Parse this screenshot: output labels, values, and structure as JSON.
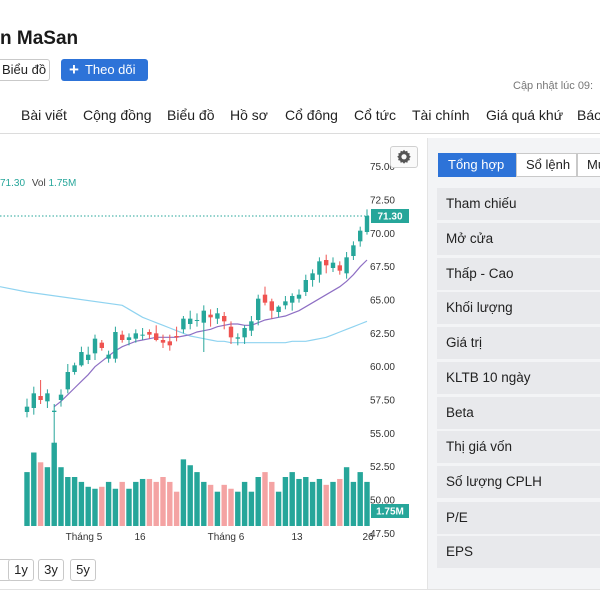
{
  "header": {
    "title": "n MaSan",
    "chart_button": "Biểu đồ",
    "follow_button": "Theo dõi",
    "updated_label": "Cập nhật lúc  09:"
  },
  "nav": {
    "items": [
      "Bài viết",
      "Cộng đồng",
      "Biểu đồ",
      "Hồ sơ",
      "Cổ đông",
      "Cổ tức",
      "Tài chính",
      "Giá quá khứ",
      "Báo"
    ]
  },
  "legend": {
    "price": "71.30",
    "vol_label": "Vol",
    "vol_value": "1.75M"
  },
  "range_buttons": [
    "",
    "1y",
    "3y",
    "5y"
  ],
  "panel": {
    "tabs": [
      "Tổng hợp",
      "Sổ lệnh",
      "Mu"
    ],
    "rows": [
      "Tham chiếu",
      "Mở cửa",
      "Thấp - Cao",
      "Khối lượng",
      "Giá trị",
      "KLTB 10 ngày",
      "Beta",
      "Thị giá vốn",
      "Số lượng CPLH",
      "P/E",
      "EPS"
    ]
  },
  "colors": {
    "up": "#26a69a",
    "down": "#ef5350",
    "ma_short": "#8e6fc4",
    "ma_long": "#8fd3f0",
    "accent": "#2d73d8"
  },
  "chart_data": {
    "type": "candlestick",
    "ylim": [
      46.25,
      76.25
    ],
    "yticks": [
      "75.00",
      "72.50",
      "70.00",
      "67.50",
      "65.00",
      "62.50",
      "60.00",
      "57.50",
      "55.00",
      "52.50",
      "50.00",
      "47.50"
    ],
    "x_labels": [
      "Tháng 5",
      "16",
      "Tháng 6",
      "13",
      "26"
    ],
    "last_price": "71.30",
    "last_volume": "1.75M",
    "candles": [
      {
        "o": 56.6,
        "h": 57.6,
        "l": 56.2,
        "c": 57.0
      },
      {
        "o": 56.9,
        "h": 58.5,
        "l": 56.4,
        "c": 58.0
      },
      {
        "o": 57.8,
        "h": 59.0,
        "l": 57.2,
        "c": 57.5
      },
      {
        "o": 57.4,
        "h": 58.3,
        "l": 56.9,
        "c": 58.0
      },
      {
        "o": 56.6,
        "h": 57.2,
        "l": 54.2,
        "c": 56.7
      },
      {
        "o": 57.5,
        "h": 58.3,
        "l": 57.0,
        "c": 57.9
      },
      {
        "o": 58.3,
        "h": 60.2,
        "l": 58.0,
        "c": 59.6
      },
      {
        "o": 59.6,
        "h": 60.3,
        "l": 59.4,
        "c": 60.1
      },
      {
        "o": 60.1,
        "h": 61.5,
        "l": 60.0,
        "c": 61.1
      },
      {
        "o": 60.5,
        "h": 61.5,
        "l": 60.2,
        "c": 60.9
      },
      {
        "o": 61.0,
        "h": 62.4,
        "l": 60.5,
        "c": 62.1
      },
      {
        "o": 61.8,
        "h": 62.0,
        "l": 61.2,
        "c": 61.4
      },
      {
        "o": 60.6,
        "h": 61.2,
        "l": 60.3,
        "c": 60.9
      },
      {
        "o": 60.6,
        "h": 63.0,
        "l": 60.3,
        "c": 62.6
      },
      {
        "o": 62.4,
        "h": 62.7,
        "l": 61.8,
        "c": 62.0
      },
      {
        "o": 62.0,
        "h": 62.5,
        "l": 61.6,
        "c": 62.2
      },
      {
        "o": 62.1,
        "h": 62.8,
        "l": 61.8,
        "c": 62.5
      },
      {
        "o": 62.4,
        "h": 62.9,
        "l": 62.0,
        "c": 62.4
      },
      {
        "o": 62.6,
        "h": 62.8,
        "l": 62.1,
        "c": 62.4
      },
      {
        "o": 62.5,
        "h": 63.1,
        "l": 61.9,
        "c": 62.0
      },
      {
        "o": 62.0,
        "h": 62.4,
        "l": 61.4,
        "c": 61.8
      },
      {
        "o": 61.9,
        "h": 62.4,
        "l": 61.2,
        "c": 61.6
      },
      {
        "o": 62.3,
        "h": 63.0,
        "l": 61.9,
        "c": 62.2
      },
      {
        "o": 62.8,
        "h": 63.8,
        "l": 62.5,
        "c": 63.6
      },
      {
        "o": 63.2,
        "h": 64.2,
        "l": 62.8,
        "c": 63.6
      },
      {
        "o": 63.5,
        "h": 64.0,
        "l": 63.0,
        "c": 63.5
      },
      {
        "o": 63.3,
        "h": 64.6,
        "l": 61.1,
        "c": 64.2
      },
      {
        "o": 63.9,
        "h": 64.3,
        "l": 63.0,
        "c": 63.7
      },
      {
        "o": 63.6,
        "h": 64.4,
        "l": 63.2,
        "c": 64.0
      },
      {
        "o": 63.8,
        "h": 64.1,
        "l": 62.8,
        "c": 63.4
      },
      {
        "o": 63.0,
        "h": 63.4,
        "l": 61.7,
        "c": 62.2
      },
      {
        "o": 62.1,
        "h": 62.5,
        "l": 61.6,
        "c": 62.2
      },
      {
        "o": 62.2,
        "h": 63.1,
        "l": 61.7,
        "c": 62.9
      },
      {
        "o": 62.7,
        "h": 63.8,
        "l": 62.3,
        "c": 63.4
      },
      {
        "o": 63.5,
        "h": 65.4,
        "l": 63.1,
        "c": 65.1
      },
      {
        "o": 65.4,
        "h": 66.0,
        "l": 64.6,
        "c": 64.8
      },
      {
        "o": 64.9,
        "h": 65.1,
        "l": 63.6,
        "c": 64.2
      },
      {
        "o": 64.1,
        "h": 64.6,
        "l": 63.7,
        "c": 64.5
      },
      {
        "o": 64.6,
        "h": 65.3,
        "l": 64.3,
        "c": 64.9
      },
      {
        "o": 64.8,
        "h": 65.5,
        "l": 64.2,
        "c": 65.3
      },
      {
        "o": 65.1,
        "h": 65.8,
        "l": 64.8,
        "c": 65.4
      },
      {
        "o": 65.6,
        "h": 66.9,
        "l": 65.3,
        "c": 66.5
      },
      {
        "o": 66.5,
        "h": 67.3,
        "l": 66.0,
        "c": 67.0
      },
      {
        "o": 66.9,
        "h": 68.2,
        "l": 66.3,
        "c": 67.9
      },
      {
        "o": 68.0,
        "h": 68.4,
        "l": 67.0,
        "c": 67.6
      },
      {
        "o": 67.4,
        "h": 68.2,
        "l": 67.1,
        "c": 67.8
      },
      {
        "o": 67.6,
        "h": 67.9,
        "l": 66.9,
        "c": 67.2
      },
      {
        "o": 67.0,
        "h": 68.6,
        "l": 66.6,
        "c": 68.2
      },
      {
        "o": 68.3,
        "h": 69.4,
        "l": 68.0,
        "c": 69.1
      },
      {
        "o": 69.4,
        "h": 70.5,
        "l": 69.0,
        "c": 70.2
      },
      {
        "o": 70.1,
        "h": 71.8,
        "l": 69.9,
        "c": 71.3
      }
    ],
    "volumes": [
      0.55,
      0.75,
      0.65,
      0.6,
      0.85,
      0.6,
      0.5,
      0.5,
      0.45,
      0.4,
      0.38,
      0.4,
      0.45,
      0.38,
      0.45,
      0.38,
      0.45,
      0.48,
      0.48,
      0.45,
      0.5,
      0.45,
      0.35,
      0.68,
      0.62,
      0.55,
      0.45,
      0.42,
      0.35,
      0.42,
      0.38,
      0.35,
      0.45,
      0.35,
      0.5,
      0.55,
      0.45,
      0.35,
      0.5,
      0.55,
      0.48,
      0.5,
      0.45,
      0.48,
      0.42,
      0.45,
      0.48,
      0.6,
      0.45,
      0.55,
      0.45
    ],
    "ma_short": [
      null,
      null,
      null,
      null,
      57.0,
      57.4,
      57.9,
      58.4,
      58.9,
      59.4,
      60.0,
      60.4,
      60.8,
      61.2,
      61.5,
      61.7,
      61.9,
      62.0,
      62.1,
      62.2,
      62.2,
      62.2,
      62.2,
      62.3,
      62.4,
      62.6,
      62.7,
      62.8,
      63.0,
      63.1,
      63.2,
      63.2,
      63.1,
      63.1,
      63.3,
      63.5,
      63.6,
      63.7,
      63.8,
      64.0,
      64.2,
      64.5,
      64.8,
      65.1,
      65.4,
      65.7,
      66.0,
      66.4,
      66.9,
      67.5,
      68.0
    ],
    "ma_long": [
      null,
      null,
      null,
      null,
      null,
      null,
      null,
      null,
      null,
      null,
      null,
      null,
      null,
      null,
      64.6,
      64.3,
      64.0,
      63.7,
      63.5,
      63.3,
      63.1,
      62.9,
      62.7,
      62.5,
      62.3,
      62.2,
      62.1,
      62.0,
      61.9,
      61.9,
      61.8,
      61.8,
      61.8,
      61.8,
      61.8,
      61.8,
      61.8,
      61.8,
      61.8,
      61.9,
      61.9,
      61.9,
      62.0,
      62.1,
      62.2,
      62.4,
      62.6,
      62.8,
      63.0,
      63.2,
      63.4
    ]
  }
}
